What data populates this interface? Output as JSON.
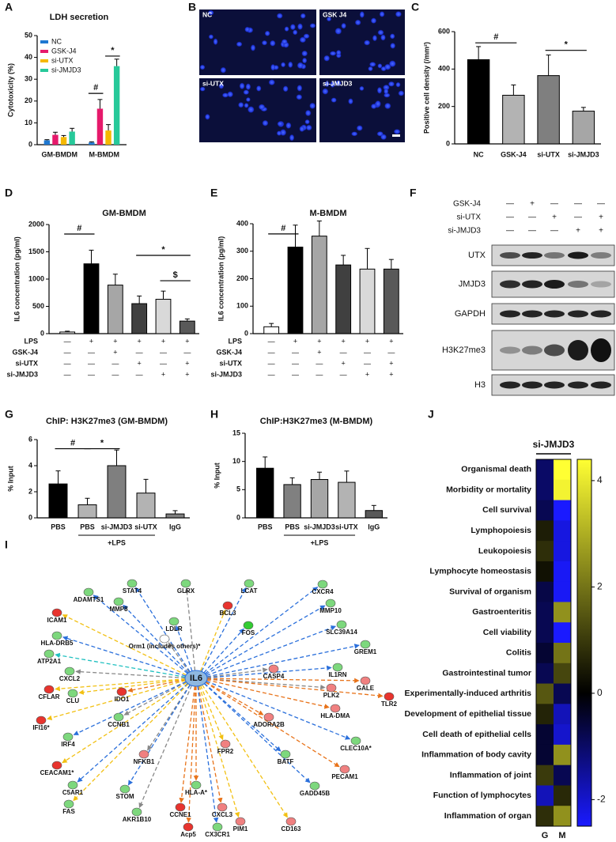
{
  "panel_labels": [
    "A",
    "B",
    "C",
    "D",
    "E",
    "F",
    "G",
    "H",
    "I",
    "J"
  ],
  "chart_data": [
    {
      "type": "bar",
      "title": "LDH secretion",
      "ylabel": "Cytotoxicity (%)",
      "categories": [
        "GM-BMDM",
        "M-BMDM"
      ],
      "series": [
        {
          "name": "NC",
          "color": "#1f78d1",
          "values": [
            2,
            1
          ],
          "errors": [
            0.3,
            0.3
          ]
        },
        {
          "name": "GSK-J4",
          "color": "#e6196b",
          "values": [
            4.5,
            16.5
          ],
          "errors": [
            1.2,
            4.2
          ]
        },
        {
          "name": "si-UTX",
          "color": "#f5b800",
          "values": [
            3.5,
            6.5
          ],
          "errors": [
            0.7,
            2.7
          ]
        },
        {
          "name": "si-JMJD3",
          "color": "#27c99a",
          "values": [
            6,
            36
          ],
          "errors": [
            1.5,
            3.2
          ]
        }
      ],
      "ylim": [
        0,
        50
      ],
      "yticks": [
        0,
        10,
        20,
        30,
        40,
        50
      ],
      "legend": "top-left",
      "annotations": [
        "#",
        "*"
      ]
    },
    {
      "type": "bar",
      "ylabel": "Positive cell density (/mm²)",
      "categories": [
        "NC",
        "GSK-J4",
        "si-UTX",
        "si-JMJD3"
      ],
      "values": [
        450,
        260,
        365,
        175
      ],
      "errors": [
        70,
        55,
        110,
        20
      ],
      "colors": [
        "#000000",
        "#b3b3b3",
        "#7f7f7f",
        "#a6a6a6"
      ],
      "ylim": [
        0,
        600
      ],
      "yticks": [
        0,
        200,
        400,
        600
      ],
      "annotations": [
        "#",
        "*"
      ]
    },
    {
      "type": "bar",
      "title": "GM-BMDM",
      "ylabel": "IL6 concentration (pg/ml)",
      "values": [
        30,
        1280,
        890,
        550,
        630,
        230
      ],
      "errors": [
        15,
        250,
        200,
        140,
        150,
        40
      ],
      "colors": [
        "#ffffff",
        "#000000",
        "#a6a6a6",
        "#404040",
        "#d9d9d9",
        "#595959"
      ],
      "ylim": [
        0,
        2000
      ],
      "yticks": [
        0,
        500,
        1000,
        1500,
        2000
      ],
      "annotations": [
        "#",
        "*",
        "$"
      ],
      "conditions": [
        {
          "name": "LPS",
          "signs": [
            "—",
            "+",
            "+",
            "+",
            "+",
            "+"
          ]
        },
        {
          "name": "GSK-J4",
          "signs": [
            "—",
            "—",
            "+",
            "—",
            "—",
            "—"
          ]
        },
        {
          "name": "si-UTX",
          "signs": [
            "—",
            "—",
            "—",
            "+",
            "—",
            "+"
          ]
        },
        {
          "name": "si-JMJD3",
          "signs": [
            "—",
            "—",
            "—",
            "—",
            "+",
            "+"
          ]
        }
      ]
    },
    {
      "type": "bar",
      "title": "M-BMDM",
      "ylabel": "IL6 concentration (pg/ml)",
      "values": [
        25,
        315,
        355,
        250,
        235,
        235
      ],
      "errors": [
        12,
        80,
        55,
        35,
        75,
        35
      ],
      "colors": [
        "#ffffff",
        "#000000",
        "#a6a6a6",
        "#404040",
        "#d9d9d9",
        "#595959"
      ],
      "ylim": [
        0,
        400
      ],
      "yticks": [
        0,
        100,
        200,
        300,
        400
      ],
      "annotations": [
        "#"
      ],
      "conditions": [
        {
          "name": "LPS",
          "signs": [
            "—",
            "+",
            "+",
            "+",
            "+",
            "+"
          ]
        },
        {
          "name": "GSK-J4",
          "signs": [
            "—",
            "—",
            "+",
            "—",
            "—",
            "—"
          ]
        },
        {
          "name": "si-UTX",
          "signs": [
            "—",
            "—",
            "—",
            "+",
            "—",
            "+"
          ]
        },
        {
          "name": "si-JMJD3",
          "signs": [
            "—",
            "—",
            "—",
            "—",
            "+",
            "+"
          ]
        }
      ]
    },
    {
      "type": "bar",
      "title": "ChIP: H3K27me3 (GM-BMDM)",
      "ylabel": "% Input",
      "categories": [
        "PBS",
        "PBS",
        "si-JMJD3",
        "si-UTX",
        "IgG"
      ],
      "values": [
        2.6,
        1.0,
        4.0,
        1.9,
        0.3
      ],
      "errors": [
        1.0,
        0.5,
        1.2,
        1.05,
        0.25
      ],
      "colors": [
        "#000000",
        "#b3b3b3",
        "#7f7f7f",
        "#b3b3b3",
        "#7f7f7f"
      ],
      "ylim": [
        0,
        6
      ],
      "yticks": [
        0,
        2,
        4,
        6
      ],
      "annotations": [
        "#",
        "*"
      ],
      "group_label": "+LPS"
    },
    {
      "type": "bar",
      "title": "ChIP:H3K27me3 (M-BMDM)",
      "ylabel": "% Input",
      "categories": [
        "PBS",
        "PBS",
        "si-JMJD3",
        "si-UTX",
        "IgG"
      ],
      "values": [
        8.8,
        5.9,
        6.8,
        6.3,
        1.3
      ],
      "errors": [
        2.0,
        1.2,
        1.3,
        2.0,
        0.9
      ],
      "colors": [
        "#000000",
        "#808080",
        "#a6a6a6",
        "#b3b3b3",
        "#595959"
      ],
      "ylim": [
        0,
        15
      ],
      "yticks": [
        0,
        5,
        10,
        15
      ],
      "group_label": "+LPS"
    },
    {
      "type": "heatmap",
      "title": "si-JMJD3",
      "columns": [
        "G",
        "M"
      ],
      "rows": [
        "Organismal death",
        "Morbidity or mortality",
        "Cell survival",
        "Lymphopoiesis",
        "Leukopoiesis",
        "Lymphocyte homeostasis",
        "Survival of organism",
        "Gastroenteritis",
        "Cell viability",
        "Colitis",
        "Gastrointestinal tumor",
        "Experimentally-induced arthritis",
        "Development of epithelial tissue",
        "Cell death of epithelial cells",
        "Inflammation of body cavity",
        "Inflammation of joint",
        "Function of lymphocytes",
        "Inflammation of organ"
      ],
      "values": [
        [
          -1,
          4.4
        ],
        [
          -1,
          4.2
        ],
        [
          -0.8,
          -2.5
        ],
        [
          0.5,
          -2.2
        ],
        [
          0.8,
          -2.2
        ],
        [
          0.3,
          -2.4
        ],
        [
          -0.7,
          -2.4
        ],
        [
          -0.8,
          2.5
        ],
        [
          -0.8,
          -2.5
        ],
        [
          -0.5,
          2
        ],
        [
          -0.8,
          1.2
        ],
        [
          1.5,
          -0.8
        ],
        [
          0.6,
          -1.8
        ],
        [
          -0.5,
          -2
        ],
        [
          -0.5,
          2.5
        ],
        [
          1,
          -0.8
        ],
        [
          -1.8,
          0.7
        ],
        [
          0.8,
          2.5
        ]
      ],
      "zlim": [
        -2.5,
        4.4
      ],
      "zticks": [
        4,
        2,
        0,
        -2
      ],
      "colorscale": [
        "#1a1aff",
        "#000000",
        "#ffff33"
      ]
    }
  ],
  "microscopy": {
    "panels": [
      "NC",
      "GSK J4",
      "si-UTX",
      "si-JMJD3"
    ]
  },
  "western_blot": {
    "conditions": [
      {
        "name": "GSK-J4",
        "signs": [
          "—",
          "+",
          "—",
          "—",
          "—"
        ]
      },
      {
        "name": "si-UTX",
        "signs": [
          "—",
          "—",
          "+",
          "—",
          "+"
        ]
      },
      {
        "name": "si-JMJD3",
        "signs": [
          "—",
          "—",
          "—",
          "+",
          "+"
        ]
      }
    ],
    "bands": [
      "UTX",
      "JMJD3",
      "GAPDH",
      "H3K27me3",
      "H3"
    ]
  },
  "network": {
    "center": "IL6",
    "center_color": "#8fb8e0",
    "nodes": [
      {
        "label": "STAT4",
        "color": "#7dd87d",
        "edge": "#2a6fdb"
      },
      {
        "label": "GLRX",
        "color": "#7dd87d",
        "edge": "#888888"
      },
      {
        "label": "LCAT",
        "color": "#7dd87d",
        "edge": "#2a6fdb"
      },
      {
        "label": "CXCR4",
        "color": "#7dd87d",
        "edge": "#2a6fdb"
      },
      {
        "label": "ADAMTS1",
        "color": "#7dd87d",
        "edge": "#2a6fdb"
      },
      {
        "label": "MMP8",
        "color": "#7dd87d",
        "edge": "#2a6fdb"
      },
      {
        "label": "BCL3",
        "color": "#e8342e",
        "edge": "#f2c012"
      },
      {
        "label": "MMP10",
        "color": "#7dd87d",
        "edge": "#2a6fdb"
      },
      {
        "label": "ICAM1",
        "color": "#e8342e",
        "edge": "#f2c012"
      },
      {
        "label": "LDLR",
        "color": "#7dd87d",
        "edge": "#2a6fdb"
      },
      {
        "label": "FOS",
        "color": "#33cc33",
        "edge": "#2a6fdb"
      },
      {
        "label": "SLC39A14",
        "color": "#7dd87d",
        "edge": "#2a6fdb"
      },
      {
        "label": "HLA-DRB5",
        "color": "#7dd87d",
        "edge": "#2a6fdb"
      },
      {
        "label": "Orm1 (includes others)*",
        "color": "#ffffff",
        "edge": "#888888"
      },
      {
        "label": "GREM1",
        "color": "#7dd87d",
        "edge": "#2a6fdb"
      },
      {
        "label": "ATP2A1",
        "color": "#7dd87d",
        "edge": "#20c0c0"
      },
      {
        "label": "IL1RN",
        "color": "#7dd87d",
        "edge": "#2a6fdb"
      },
      {
        "label": "CXCL2",
        "color": "#7dd87d",
        "edge": "#888888"
      },
      {
        "label": "CASP4",
        "color": "#f08080",
        "edge": "#888888"
      },
      {
        "label": "GALE",
        "color": "#f08080",
        "edge": "#e8731a"
      },
      {
        "label": "CFLAR",
        "color": "#e8342e",
        "edge": "#f2c012"
      },
      {
        "label": "IDO1",
        "color": "#e8342e",
        "edge": "#e8731a"
      },
      {
        "label": "PLK2",
        "color": "#f08080",
        "edge": "#888888"
      },
      {
        "label": "TLR2",
        "color": "#e8342e",
        "edge": "#e8731a"
      },
      {
        "label": "CLU",
        "color": "#7dd87d",
        "edge": "#f2c012"
      },
      {
        "label": "HLA-DMA",
        "color": "#f08080",
        "edge": "#e8731a"
      },
      {
        "label": "IFI16*",
        "color": "#e8342e",
        "edge": "#f2c012"
      },
      {
        "label": "CCNB1",
        "color": "#7dd87d",
        "edge": "#888888"
      },
      {
        "label": "ADORA2B",
        "color": "#f08080",
        "edge": "#e8731a"
      },
      {
        "label": "IRF4",
        "color": "#7dd87d",
        "edge": "#2a6fdb"
      },
      {
        "label": "CLEC10A*",
        "color": "#7dd87d",
        "edge": "#2a6fdb"
      },
      {
        "label": "FPR2",
        "color": "#f08080",
        "edge": "#f2c012"
      },
      {
        "label": "CEACAM1*",
        "color": "#e8342e",
        "edge": "#f2c012"
      },
      {
        "label": "NFKB1",
        "color": "#f08080",
        "edge": "#888888"
      },
      {
        "label": "BATF",
        "color": "#7dd87d",
        "edge": "#2a6fdb"
      },
      {
        "label": "PECAM1",
        "color": "#f08080",
        "edge": "#e8731a"
      },
      {
        "label": "C5AR1",
        "color": "#7dd87d",
        "edge": "#2a6fdb"
      },
      {
        "label": "STOM",
        "color": "#7dd87d",
        "edge": "#2a6fdb"
      },
      {
        "label": "HLA-A*",
        "color": "#7dd87d",
        "edge": "#e8731a"
      },
      {
        "label": "GADD45B",
        "color": "#7dd87d",
        "edge": "#2a6fdb"
      },
      {
        "label": "FAS",
        "color": "#7dd87d",
        "edge": "#f2c012"
      },
      {
        "label": "CXCL3",
        "color": "#f08080",
        "edge": "#e8731a"
      },
      {
        "label": "AKR1B10",
        "color": "#7dd87d",
        "edge": "#888888"
      },
      {
        "label": "CCNE1",
        "color": "#e8342e",
        "edge": "#e8731a"
      },
      {
        "label": "PIM1",
        "color": "#f08080",
        "edge": "#f2c012"
      },
      {
        "label": "CD163",
        "color": "#f08080",
        "edge": "#f2c012"
      },
      {
        "label": "Acp5",
        "color": "#e8342e",
        "edge": "#e8731a"
      },
      {
        "label": "CX3CR1",
        "color": "#7dd87d",
        "edge": "#2a6fdb"
      }
    ]
  }
}
